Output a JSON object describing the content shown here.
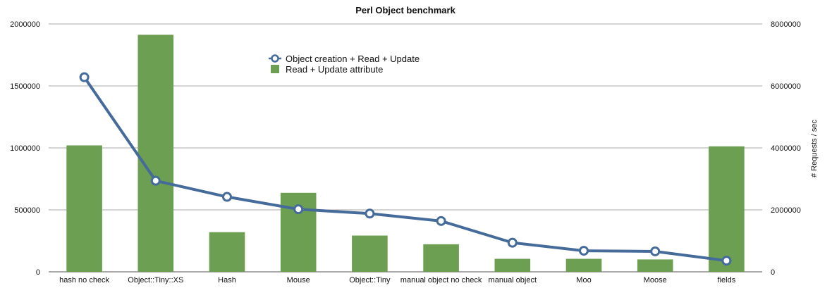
{
  "chart_data": {
    "type": "bar",
    "title": "Perl Object benchmark",
    "xlabel": "",
    "ylabel": "",
    "y2label": "# Requests / sec",
    "categories": [
      "hash no check",
      "Object::Tiny::XS",
      "Hash",
      "Mouse",
      "Object::Tiny",
      "manual object no check",
      "manual object",
      "Moo",
      "Moose",
      "fields"
    ],
    "ylim": [
      0,
      2000000
    ],
    "y2lim": [
      0,
      8000000
    ],
    "yticks": [
      "0",
      "500000",
      "1000000",
      "1500000",
      "2000000"
    ],
    "y2ticks": [
      "0",
      "2000000",
      "4000000",
      "6000000",
      "8000000"
    ],
    "grid": true,
    "legend_position": "top-center",
    "series": [
      {
        "name": "Object creation + Read + Update",
        "kind": "line",
        "axis": "left",
        "color": "#456b9a",
        "values": [
          1570000,
          735000,
          605000,
          505000,
          470000,
          410000,
          235000,
          170000,
          165000,
          90000
        ]
      },
      {
        "name": "Read + Update attribute",
        "kind": "bar",
        "axis": "right",
        "color": "#6c9f52",
        "values": [
          4080000,
          7650000,
          1280000,
          2550000,
          1170000,
          890000,
          420000,
          420000,
          400000,
          4050000
        ]
      }
    ]
  }
}
